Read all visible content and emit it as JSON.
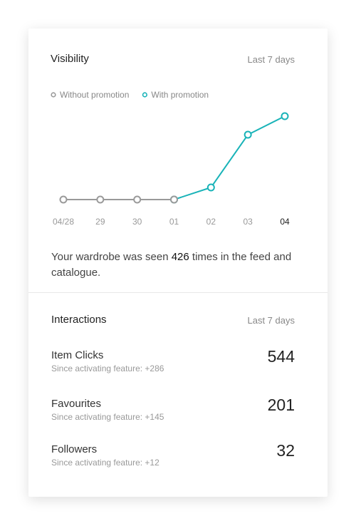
{
  "visibility": {
    "title": "Visibility",
    "period": "Last 7 days",
    "chart_data": {
      "type": "line",
      "categories": [
        "04/28",
        "29",
        "30",
        "01",
        "02",
        "03",
        "04"
      ],
      "series": [
        {
          "name": "Without promotion",
          "color": "#9a9a9a",
          "values": [
            0,
            0,
            0,
            0,
            null,
            null,
            null
          ]
        },
        {
          "name": "With promotion",
          "color": "#19b3b8",
          "values": [
            null,
            null,
            null,
            0,
            17,
            91,
            117
          ]
        }
      ]
    },
    "summary": {
      "prefix": "Your wardrobe was seen ",
      "count": 426,
      "suffix": " times in the feed and catalogue."
    }
  },
  "interactions": {
    "title": "Interactions",
    "period": "Last 7 days",
    "rows": [
      {
        "label": "Item Clicks",
        "note": "Since activating feature: +286",
        "value": 544
      },
      {
        "label": "Favourites",
        "note": "Since activating feature: +145",
        "value": 201
      },
      {
        "label": "Followers",
        "note": "Since activating feature: +12",
        "value": 32
      }
    ]
  }
}
